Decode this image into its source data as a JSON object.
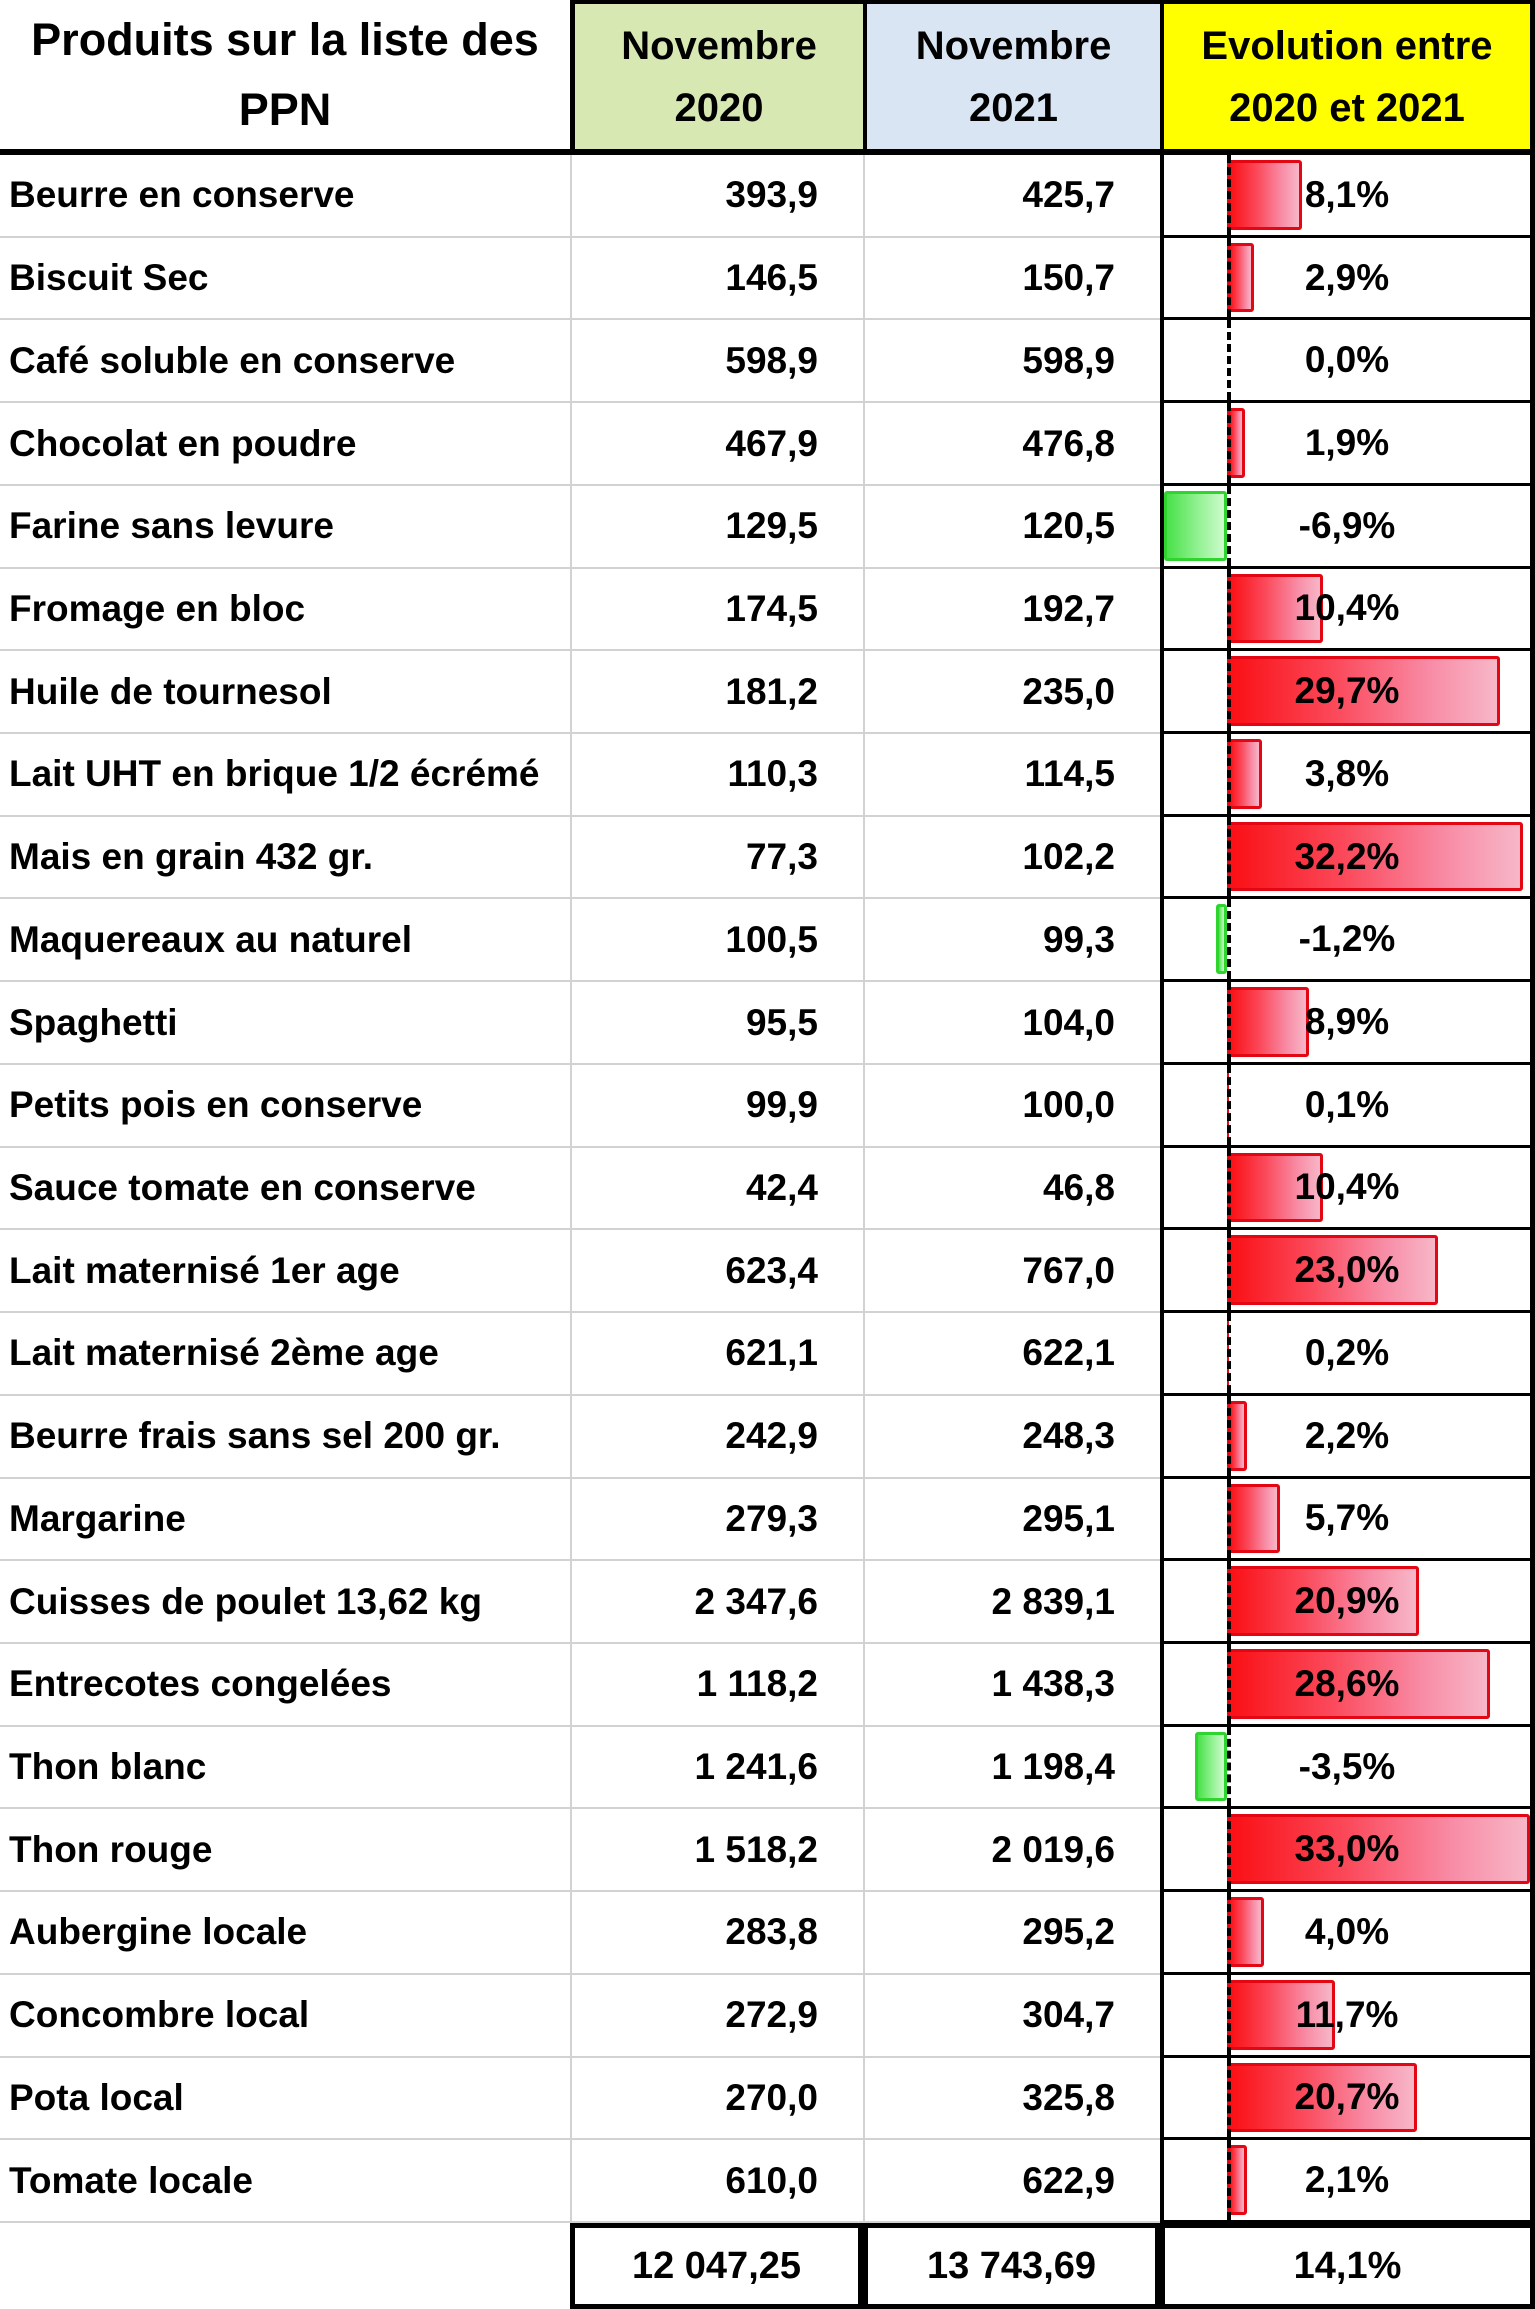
{
  "header": {
    "product_line1": "Produits sur la liste des",
    "product_line2": "PPN",
    "col2020_line1": "Novembre",
    "col2020_line2": "2020",
    "col2021_line1": "Novembre",
    "col2021_line2": "2021",
    "evolution_line1": "Evolution entre",
    "evolution_line2": "2020 et 2021"
  },
  "colors": {
    "header_2020_bg": "#d8e8b2",
    "header_2021_bg": "#d9e5f3",
    "header_evolution_bg": "#ffff00",
    "bar_positive": "#e30613",
    "bar_negative": "#2fd42f",
    "zero_line": "#000000"
  },
  "chart_data": {
    "type": "table-with-data-bars",
    "title": "Produits sur la liste des PPN",
    "columns": [
      "Produits sur la liste des PPN",
      "Novembre 2020",
      "Novembre 2021",
      "Evolution entre 2020 et 2021"
    ],
    "bar_axis_min": -6.9,
    "bar_axis_max": 33.0,
    "rows": [
      {
        "product": "Beurre en conserve",
        "nov2020": "393,9",
        "nov2021": "425,7",
        "evolution": "8,1%",
        "evolution_value": 8.1
      },
      {
        "product": "Biscuit Sec",
        "nov2020": "146,5",
        "nov2021": "150,7",
        "evolution": "2,9%",
        "evolution_value": 2.9
      },
      {
        "product": "Café soluble en conserve",
        "nov2020": "598,9",
        "nov2021": "598,9",
        "evolution": "0,0%",
        "evolution_value": 0.0
      },
      {
        "product": "Chocolat en poudre",
        "nov2020": "467,9",
        "nov2021": "476,8",
        "evolution": "1,9%",
        "evolution_value": 1.9
      },
      {
        "product": "Farine sans levure",
        "nov2020": "129,5",
        "nov2021": "120,5",
        "evolution": "-6,9%",
        "evolution_value": -6.9
      },
      {
        "product": "Fromage en bloc",
        "nov2020": "174,5",
        "nov2021": "192,7",
        "evolution": "10,4%",
        "evolution_value": 10.4
      },
      {
        "product": "Huile de tournesol",
        "nov2020": "181,2",
        "nov2021": "235,0",
        "evolution": "29,7%",
        "evolution_value": 29.7
      },
      {
        "product": "Lait UHT en brique 1/2 écrémé",
        "nov2020": "110,3",
        "nov2021": "114,5",
        "evolution": "3,8%",
        "evolution_value": 3.8
      },
      {
        "product": "Mais en grain 432 gr.",
        "nov2020": "77,3",
        "nov2021": "102,2",
        "evolution": "32,2%",
        "evolution_value": 32.2
      },
      {
        "product": "Maquereaux au naturel",
        "nov2020": "100,5",
        "nov2021": "99,3",
        "evolution": "-1,2%",
        "evolution_value": -1.2
      },
      {
        "product": "Spaghetti",
        "nov2020": "95,5",
        "nov2021": "104,0",
        "evolution": "8,9%",
        "evolution_value": 8.9
      },
      {
        "product": "Petits pois en conserve",
        "nov2020": "99,9",
        "nov2021": "100,0",
        "evolution": "0,1%",
        "evolution_value": 0.1
      },
      {
        "product": "Sauce tomate en conserve",
        "nov2020": "42,4",
        "nov2021": "46,8",
        "evolution": "10,4%",
        "evolution_value": 10.4
      },
      {
        "product": "Lait maternisé 1er age",
        "nov2020": "623,4",
        "nov2021": "767,0",
        "evolution": "23,0%",
        "evolution_value": 23.0
      },
      {
        "product": "Lait maternisé 2ème age",
        "nov2020": "621,1",
        "nov2021": "622,1",
        "evolution": "0,2%",
        "evolution_value": 0.2
      },
      {
        "product": "Beurre frais sans sel 200 gr.",
        "nov2020": "242,9",
        "nov2021": "248,3",
        "evolution": "2,2%",
        "evolution_value": 2.2
      },
      {
        "product": "Margarine",
        "nov2020": "279,3",
        "nov2021": "295,1",
        "evolution": "5,7%",
        "evolution_value": 5.7
      },
      {
        "product": "Cuisses de poulet 13,62 kg",
        "nov2020": "2 347,6",
        "nov2021": "2 839,1",
        "evolution": "20,9%",
        "evolution_value": 20.9
      },
      {
        "product": "Entrecotes congelées",
        "nov2020": "1 118,2",
        "nov2021": "1 438,3",
        "evolution": "28,6%",
        "evolution_value": 28.6
      },
      {
        "product": "Thon blanc",
        "nov2020": "1 241,6",
        "nov2021": "1 198,4",
        "evolution": "-3,5%",
        "evolution_value": -3.5
      },
      {
        "product": "Thon rouge",
        "nov2020": "1 518,2",
        "nov2021": "2 019,6",
        "evolution": "33,0%",
        "evolution_value": 33.0
      },
      {
        "product": "Aubergine locale",
        "nov2020": "283,8",
        "nov2021": "295,2",
        "evolution": "4,0%",
        "evolution_value": 4.0
      },
      {
        "product": "Concombre local",
        "nov2020": "272,9",
        "nov2021": "304,7",
        "evolution": "11,7%",
        "evolution_value": 11.7
      },
      {
        "product": "Pota local",
        "nov2020": "270,0",
        "nov2021": "325,8",
        "evolution": "20,7%",
        "evolution_value": 20.7
      },
      {
        "product": "Tomate locale",
        "nov2020": "610,0",
        "nov2021": "622,9",
        "evolution": "2,1%",
        "evolution_value": 2.1
      }
    ],
    "total": {
      "nov2020": "12 047,25",
      "nov2021": "13 743,69",
      "evolution": "14,1%"
    }
  }
}
